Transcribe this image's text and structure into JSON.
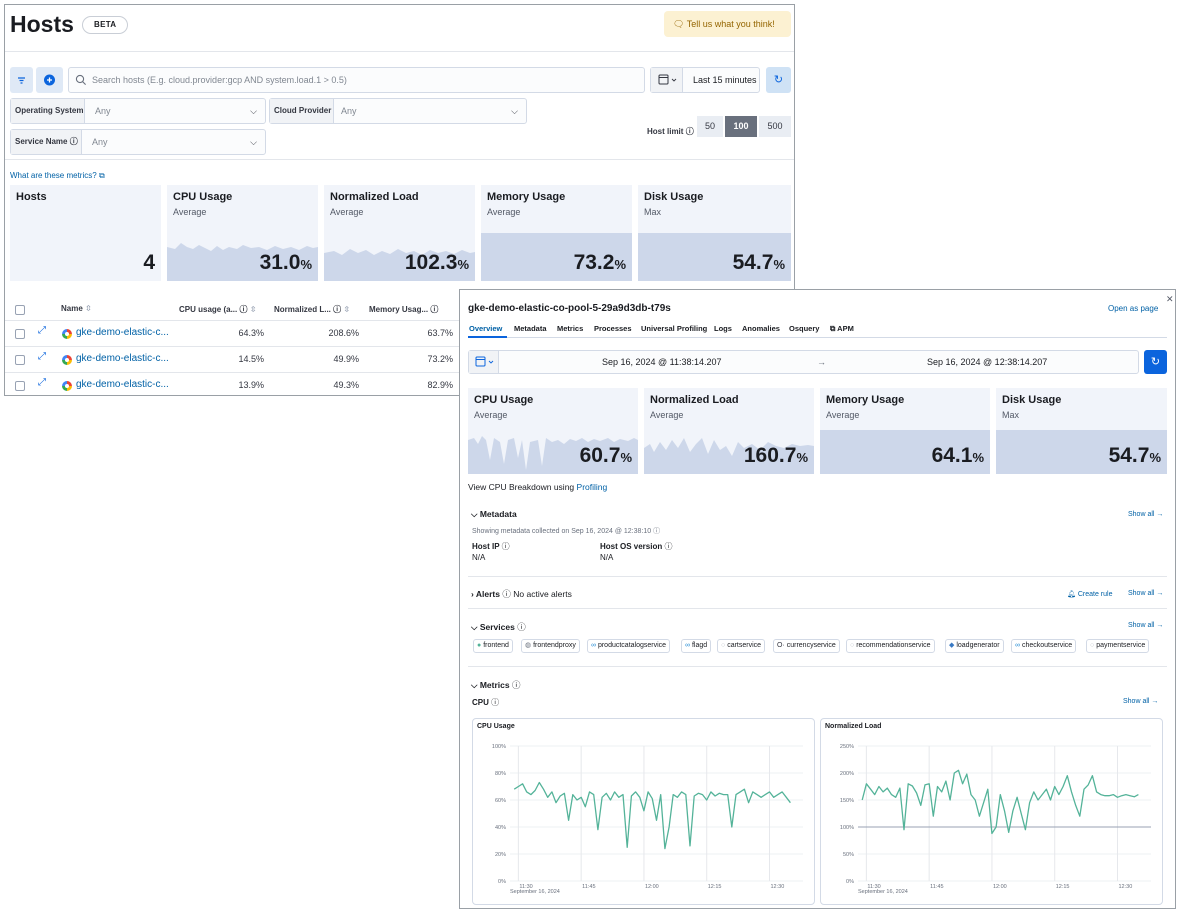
{
  "hosts_page": {
    "title": "Hosts",
    "badge": "BETA",
    "feedback_label": "Tell us what you think!",
    "search_placeholder": "Search hosts (E.g. cloud.provider:gcp AND system.load.1 > 0.5)",
    "time_range": "Last 15 minutes",
    "filters": {
      "os_label": "Operating System",
      "os_value": "Any",
      "cloud_label": "Cloud Provider",
      "cloud_value": "Any",
      "service_label": "Service Name",
      "service_value": "Any"
    },
    "host_limit": {
      "label": "Host limit",
      "options": [
        "50",
        "100",
        "500"
      ],
      "selected": "100"
    },
    "metrics_link": "What are these metrics?",
    "kpis": [
      {
        "title": "Hosts",
        "subtitle": "",
        "value": "4",
        "unit": ""
      },
      {
        "title": "CPU Usage",
        "subtitle": "Average",
        "value": "31.0",
        "unit": "%"
      },
      {
        "title": "Normalized Load",
        "subtitle": "Average",
        "value": "102.3",
        "unit": "%"
      },
      {
        "title": "Memory Usage",
        "subtitle": "Average",
        "value": "73.2",
        "unit": "%"
      },
      {
        "title": "Disk Usage",
        "subtitle": "Max",
        "value": "54.7",
        "unit": "%"
      }
    ],
    "table": {
      "headers": {
        "name": "Name",
        "cpu": "CPU usage (a...",
        "load": "Normalized L...",
        "memory": "Memory Usag..."
      },
      "rows": [
        {
          "name": "gke-demo-elastic-c...",
          "cpu": "64.3%",
          "load": "208.6%",
          "memory": "63.7%"
        },
        {
          "name": "gke-demo-elastic-c...",
          "cpu": "14.5%",
          "load": "49.9%",
          "memory": "73.2%"
        },
        {
          "name": "gke-demo-elastic-c...",
          "cpu": "13.9%",
          "load": "49.3%",
          "memory": "82.9%"
        }
      ]
    }
  },
  "flyout": {
    "title": "gke-demo-elastic-co-pool-5-29a9d3db-t79s",
    "open_as_page": "Open as page",
    "tabs": [
      "Overview",
      "Metadata",
      "Metrics",
      "Processes",
      "Universal Profiling",
      "Logs",
      "Anomalies",
      "Osquery",
      "APM"
    ],
    "date_start": "Sep 16, 2024 @ 11:38:14.207",
    "date_arrow": "→",
    "date_end": "Sep 16, 2024 @ 12:38:14.207",
    "kpis": [
      {
        "title": "CPU Usage",
        "subtitle": "Average",
        "value": "60.7",
        "unit": "%"
      },
      {
        "title": "Normalized Load",
        "subtitle": "Average",
        "value": "160.7",
        "unit": "%"
      },
      {
        "title": "Memory Usage",
        "subtitle": "Average",
        "value": "64.1",
        "unit": "%"
      },
      {
        "title": "Disk Usage",
        "subtitle": "Max",
        "value": "54.7",
        "unit": "%"
      }
    ],
    "profiling_prefix": "View CPU Breakdown using",
    "profiling_link": "Profiling",
    "metadata": {
      "title": "Metadata",
      "collected": "Showing metadata collected on Sep 16, 2024 @ 12:38:10",
      "show_all": "Show all",
      "host_ip_label": "Host IP",
      "host_ip_value": "N/A",
      "host_os_label": "Host OS version",
      "host_os_value": "N/A"
    },
    "alerts": {
      "title": "Alerts",
      "status": "No active alerts",
      "create_rule": "Create rule",
      "show_all": "Show all"
    },
    "services": {
      "title": "Services",
      "show_all": "Show all",
      "items": [
        "frontend",
        "frontendproxy",
        "productcatalogservice",
        "flagd",
        "cartservice",
        "currencyservice",
        "recommendationservice",
        "loadgenerator",
        "checkoutservice",
        "paymentservice"
      ]
    },
    "metrics": {
      "title": "Metrics",
      "sub": "CPU",
      "show_all": "Show all"
    }
  },
  "chart_data": [
    {
      "type": "line",
      "title": "CPU Usage",
      "y_ticks": [
        "100%",
        "80%",
        "60%",
        "40%",
        "20%",
        "0%"
      ],
      "ylim": [
        0,
        100
      ],
      "x_ticks": [
        "11:30",
        "11:45",
        "12:00",
        "12:15",
        "12:30"
      ],
      "x_sub": "September 16, 2024",
      "x_domain": [
        "11:28",
        "12:38"
      ],
      "x": [
        "11:29",
        "11:30",
        "11:31",
        "11:32",
        "11:33",
        "11:34",
        "11:35",
        "11:36",
        "11:37",
        "11:38",
        "11:39",
        "11:40",
        "11:41",
        "11:42",
        "11:43",
        "11:44",
        "11:45",
        "11:46",
        "11:47",
        "11:48",
        "11:49",
        "11:50",
        "11:51",
        "11:52",
        "11:53",
        "11:54",
        "11:55",
        "11:56",
        "11:57",
        "11:58",
        "11:59",
        "12:00",
        "12:01",
        "12:02",
        "12:03",
        "12:04",
        "12:05",
        "12:06",
        "12:07",
        "12:08",
        "12:09",
        "12:10",
        "12:11",
        "12:12",
        "12:13",
        "12:14",
        "12:15",
        "12:16",
        "12:17",
        "12:18",
        "12:19",
        "12:20",
        "12:21",
        "12:22",
        "12:23",
        "12:24",
        "12:25",
        "12:26",
        "12:27",
        "12:28",
        "12:29",
        "12:30",
        "12:31",
        "12:32",
        "12:33",
        "12:34",
        "12:35"
      ],
      "series": [
        {
          "values": [
            68,
            70,
            72,
            66,
            64,
            67,
            73,
            68,
            62,
            66,
            58,
            63,
            65,
            45,
            64,
            60,
            62,
            55,
            66,
            64,
            38,
            62,
            65,
            60,
            66,
            62,
            64,
            25,
            63,
            66,
            62,
            52,
            66,
            61,
            45,
            64,
            24,
            40,
            64,
            62,
            66,
            64,
            26,
            63,
            65,
            64,
            60,
            66,
            63,
            65,
            64,
            64,
            40,
            64,
            66,
            68,
            58,
            66,
            64,
            62,
            64,
            66,
            62,
            64,
            66,
            62,
            58
          ]
        }
      ]
    },
    {
      "type": "line",
      "title": "Normalized Load",
      "y_ticks": [
        "250%",
        "200%",
        "150%",
        "100%",
        "50%",
        "0%"
      ],
      "ylim": [
        0,
        250
      ],
      "x_ticks": [
        "11:30",
        "11:45",
        "12:00",
        "12:15",
        "12:30"
      ],
      "x_sub": "September 16, 2024",
      "x_domain": [
        "11:28",
        "12:38"
      ],
      "x": [
        "11:29",
        "11:30",
        "11:31",
        "11:32",
        "11:33",
        "11:34",
        "11:35",
        "11:36",
        "11:37",
        "11:38",
        "11:39",
        "11:40",
        "11:41",
        "11:42",
        "11:43",
        "11:44",
        "11:45",
        "11:46",
        "11:47",
        "11:48",
        "11:49",
        "11:50",
        "11:51",
        "11:52",
        "11:53",
        "11:54",
        "11:55",
        "11:56",
        "11:57",
        "11:58",
        "11:59",
        "12:00",
        "12:01",
        "12:02",
        "12:03",
        "12:04",
        "12:05",
        "12:06",
        "12:07",
        "12:08",
        "12:09",
        "12:10",
        "12:11",
        "12:12",
        "12:13",
        "12:14",
        "12:15",
        "12:16",
        "12:17",
        "12:18",
        "12:19",
        "12:20",
        "12:21",
        "12:22",
        "12:23",
        "12:24",
        "12:25",
        "12:26",
        "12:27",
        "12:28",
        "12:29",
        "12:30",
        "12:31",
        "12:32",
        "12:33",
        "12:34",
        "12:35"
      ],
      "series": [
        {
          "values": [
            150,
            180,
            170,
            160,
            175,
            165,
            172,
            160,
            155,
            172,
            95,
            180,
            176,
            163,
            140,
            178,
            180,
            120,
            175,
            165,
            185,
            150,
            200,
            205,
            180,
            198,
            160,
            150,
            120,
            145,
            170,
            88,
            100,
            160,
            130,
            90,
            130,
            155,
            125,
            95,
            145,
            165,
            150,
            160,
            170,
            150,
            175,
            160,
            175,
            195,
            165,
            140,
            120,
            170,
            178,
            195,
            165,
            160,
            158,
            158,
            160,
            155,
            158,
            160,
            158,
            156,
            160
          ]
        }
      ]
    }
  ]
}
